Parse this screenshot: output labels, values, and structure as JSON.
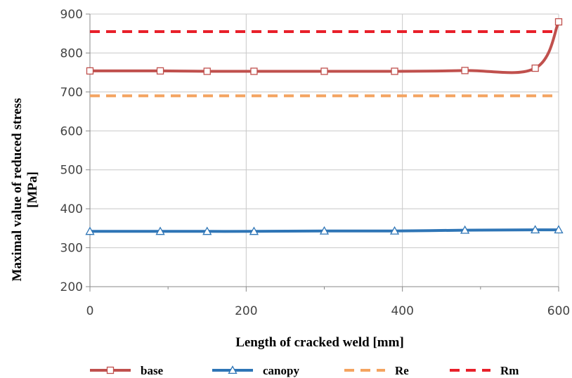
{
  "chart_data": {
    "type": "line",
    "xlabel": "Length of cracked weld [mm]",
    "ylabel_lines": [
      "Maximal value of reduced stress",
      "[MPa]"
    ],
    "xlim": [
      0,
      600
    ],
    "ylim": [
      200,
      900
    ],
    "xticks": [
      0,
      200,
      400,
      600
    ],
    "yticks": [
      200,
      300,
      400,
      500,
      600,
      700,
      800,
      900
    ],
    "grid": true,
    "legend": "bottom",
    "series": [
      {
        "name": "base",
        "style": "solid",
        "marker": "square",
        "color": "#c0504d",
        "x": [
          0,
          90,
          150,
          210,
          300,
          390,
          480,
          570,
          600
        ],
        "y": [
          754,
          754,
          753,
          753,
          753,
          753,
          755,
          761,
          880
        ]
      },
      {
        "name": "canopy",
        "style": "solid",
        "marker": "triangle",
        "color": "#2e75b6",
        "x": [
          0,
          90,
          150,
          210,
          300,
          390,
          480,
          570,
          600
        ],
        "y": [
          342,
          342,
          342,
          342,
          343,
          343,
          345,
          346,
          346
        ]
      },
      {
        "name": "Re",
        "style": "dashed",
        "marker": "none",
        "color": "#f4a460",
        "x": [
          0,
          600
        ],
        "y": [
          690,
          690
        ]
      },
      {
        "name": "Rm",
        "style": "dashed",
        "marker": "none",
        "color": "#e8202a",
        "x": [
          0,
          600
        ],
        "y": [
          855,
          855
        ]
      }
    ]
  }
}
